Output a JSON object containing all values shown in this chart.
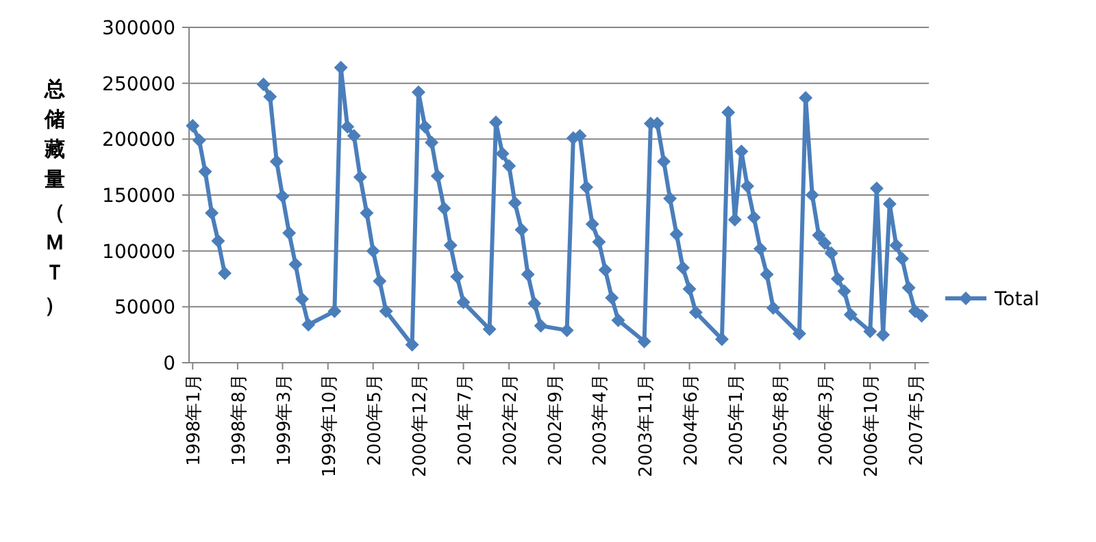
{
  "chart_data": {
    "type": "line",
    "ylabel": "总储藏量（ＭＴ）",
    "x": [
      "1998-12",
      "1999-01",
      "1999-02",
      "1999-03",
      "1999-04",
      "1999-05",
      "1999-06",
      "1999-07",
      "1999-11",
      "1999-12",
      "2000-01",
      "2000-02",
      "2000-03",
      "2000-04",
      "2000-05",
      "2000-06",
      "2000-07",
      "2000-11",
      "2000-12",
      "2001-01",
      "2001-02",
      "2001-03",
      "2001-04",
      "2001-05",
      "2001-06",
      "2001-07",
      "2001-11",
      "2001-12",
      "2002-01",
      "2002-02",
      "2002-03",
      "2002-04",
      "2002-05",
      "2002-06",
      "2002-07",
      "2002-11",
      "2002-12",
      "2003-01",
      "2003-02",
      "2003-03",
      "2003-04",
      "2003-05",
      "2003-06",
      "2003-07",
      "2003-11",
      "2003-12",
      "2004-01",
      "2004-02",
      "2004-03",
      "2004-04",
      "2004-05",
      "2004-06",
      "2004-07",
      "2004-11",
      "2004-12",
      "2005-01",
      "2005-02",
      "2005-03",
      "2005-04",
      "2005-05",
      "2005-06",
      "2005-07",
      "2005-11",
      "2005-12",
      "2006-01",
      "2006-02",
      "2006-03",
      "2006-04",
      "2006-05",
      "2006-06",
      "2006-07",
      "2006-10",
      "2006-11",
      "2006-12",
      "2007-01",
      "2007-02",
      "2007-03",
      "2007-04",
      "2007-05",
      "2007-06"
    ],
    "series": [
      {
        "color": "#4a7ebb",
        "x": [
          "1998-01",
          "1998-02",
          "1998-03",
          "1998-04",
          "1998-05",
          "1998-06"
        ],
        "values": [
          212000,
          199000,
          171000,
          134000,
          109000,
          80000
        ]
      },
      {
        "name": "Total",
        "color": "#4a7ebb",
        "values": [
          249000,
          238000,
          180000,
          149000,
          116000,
          88000,
          57000,
          34000,
          46000,
          264000,
          211000,
          203000,
          166000,
          134000,
          100000,
          73000,
          46000,
          16000,
          242000,
          211000,
          197000,
          167000,
          138000,
          105000,
          77000,
          54000,
          30000,
          215000,
          187000,
          176000,
          143000,
          119000,
          79000,
          53000,
          33000,
          29000,
          201000,
          203000,
          157000,
          124000,
          108000,
          83000,
          58000,
          38000,
          19000,
          214000,
          214000,
          180000,
          147000,
          115000,
          85000,
          66000,
          45000,
          21000,
          224000,
          128000,
          189000,
          158000,
          130000,
          102000,
          79000,
          49000,
          26000,
          237000,
          150000,
          114000,
          107000,
          98000,
          75000,
          64000,
          43000,
          28000,
          156000,
          25000,
          142000,
          105000,
          93000,
          67000,
          46000,
          42000
        ]
      }
    ],
    "xlim": [
      "1997-12-15",
      "2007-07-05"
    ],
    "xticks": [
      {
        "value": "1998-01",
        "label": "1998年1月"
      },
      {
        "value": "1998-08",
        "label": "1998年8月"
      },
      {
        "value": "1999-03",
        "label": "1999年3月"
      },
      {
        "value": "1999-10",
        "label": "1999年10月"
      },
      {
        "value": "2000-05",
        "label": "2000年5月"
      },
      {
        "value": "2000-12",
        "label": "2000年12月"
      },
      {
        "value": "2001-07",
        "label": "2001年7月"
      },
      {
        "value": "2002-02",
        "label": "2002年2月"
      },
      {
        "value": "2002-09",
        "label": "2002年9月"
      },
      {
        "value": "2003-04",
        "label": "2003年4月"
      },
      {
        "value": "2003-11",
        "label": "2003年11月"
      },
      {
        "value": "2004-06",
        "label": "2004年6月"
      },
      {
        "value": "2005-01",
        "label": "2005年1月"
      },
      {
        "value": "2005-08",
        "label": "2005年8月"
      },
      {
        "value": "2006-03",
        "label": "2006年3月"
      },
      {
        "value": "2006-10",
        "label": "2006年10月"
      },
      {
        "value": "2007-05",
        "label": "2007年5月"
      }
    ],
    "ylim": [
      0,
      300000
    ],
    "yticks": [
      0,
      50000,
      100000,
      150000,
      200000,
      250000,
      300000
    ],
    "grid": "y",
    "legend": "right",
    "marker": "diamond",
    "line_style": "solid"
  }
}
